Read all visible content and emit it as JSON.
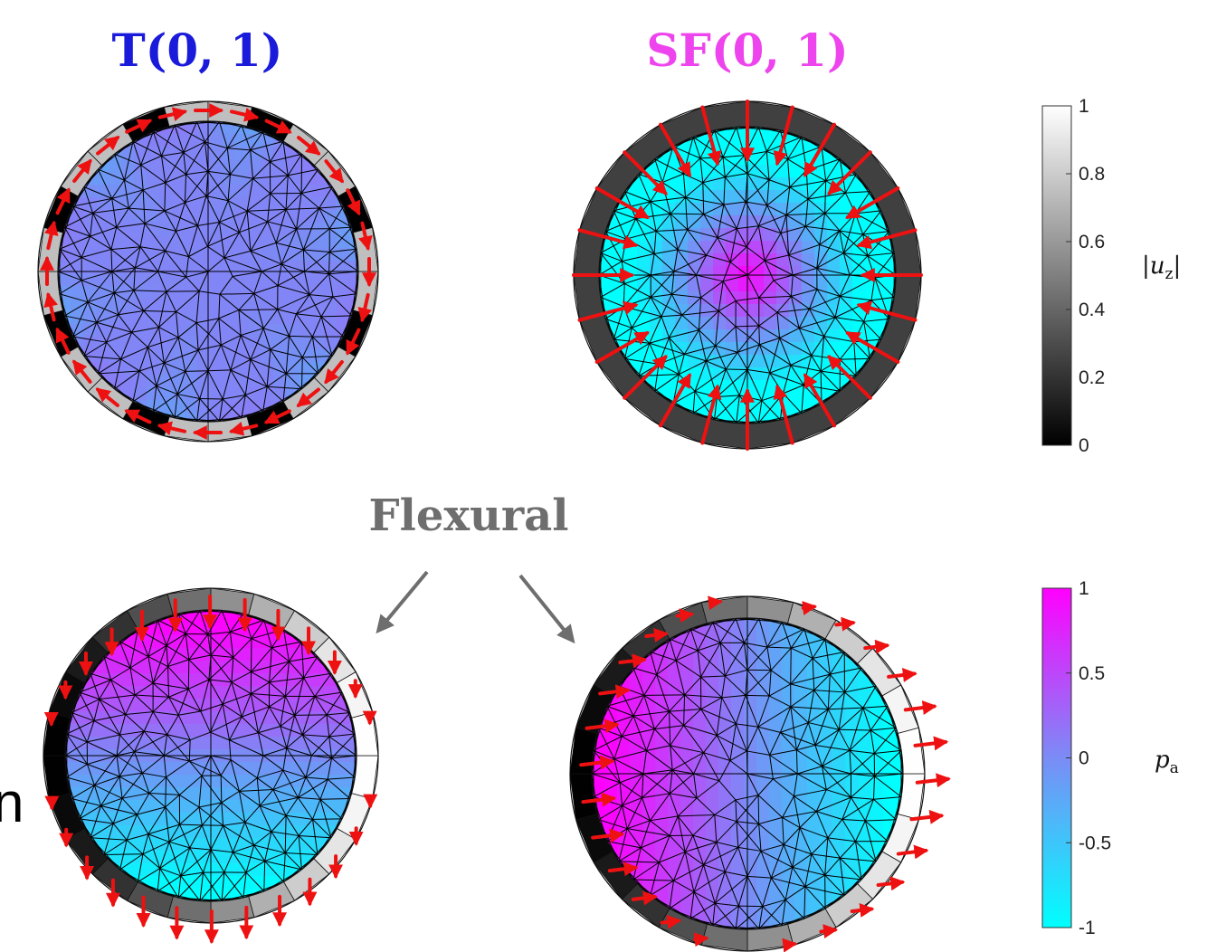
{
  "panels": {
    "top_left": {
      "title": "T(0, 1)",
      "title_color": "#1a1adb"
    },
    "top_right": {
      "title": "SF(0, 1)",
      "title_color": "#ee44ee"
    }
  },
  "annotation": {
    "text": "Flexural",
    "color": "#6e6e6e"
  },
  "edge_text": "n",
  "colorbars": {
    "displacement": {
      "label": "|u",
      "label_sub": "z",
      "label_tail": "|",
      "ticks": [
        "1",
        "0.8",
        "0.6",
        "0.4",
        "0.2",
        "0"
      ],
      "range": [
        0,
        1
      ],
      "gradient": [
        "#000000",
        "#ffffff"
      ]
    },
    "pressure": {
      "label": "p",
      "label_sub": "a",
      "label_tail": "",
      "ticks": [
        "1",
        "0.5",
        "0",
        "-0.5",
        "-1"
      ],
      "range": [
        -1,
        1
      ],
      "gradient": [
        "#00ffff",
        "#ff00ff"
      ]
    }
  },
  "colors": {
    "arrow": "#ee1111",
    "mesh": "#000000"
  }
}
